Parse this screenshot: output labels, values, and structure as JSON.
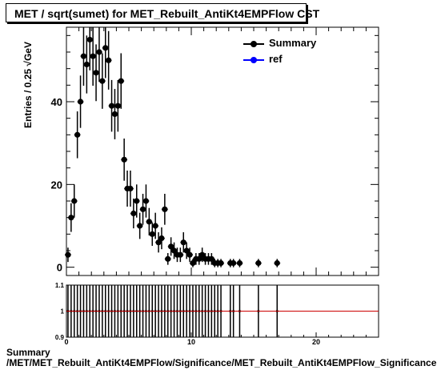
{
  "title": "MET / sqrt(sumet) for MET_Rebuilt_AntiKt4EMPFlow CST",
  "ylabel": "Entries / 0.25 √GeV",
  "footer_line1": "Summary",
  "footer_line2": "/MET/MET_Rebuilt_AntiKt4EMPFlow/Significance/MET_Rebuilt_AntiKt4EMPFlow_Significance",
  "legend": [
    {
      "label": "Summary",
      "color": "#000000"
    },
    {
      "label": "ref",
      "color": "#0000ff"
    }
  ],
  "chart_data": [
    {
      "type": "scatter",
      "xlim": [
        0,
        25
      ],
      "ylim": [
        -2,
        58
      ],
      "yticks": [
        0,
        20,
        40
      ],
      "xticks": [
        0,
        10,
        20
      ],
      "series": [
        {
          "name": "Summary",
          "color": "#000000",
          "x": [
            0.125,
            0.375,
            0.625,
            0.875,
            1.125,
            1.375,
            1.625,
            1.875,
            2.125,
            2.375,
            2.625,
            2.875,
            3.125,
            3.375,
            3.625,
            3.875,
            4.125,
            4.375,
            4.625,
            4.875,
            5.125,
            5.375,
            5.625,
            5.875,
            6.125,
            6.375,
            6.625,
            6.875,
            7.125,
            7.375,
            7.625,
            7.875,
            8.125,
            8.375,
            8.625,
            8.875,
            9.125,
            9.375,
            9.625,
            9.875,
            10.125,
            10.375,
            10.625,
            10.875,
            11.125,
            11.375,
            11.625,
            11.875,
            12.125,
            12.375,
            13.125,
            13.375,
            13.875,
            15.375,
            16.875
          ],
          "y": [
            3,
            12,
            16,
            32,
            40,
            51,
            49,
            55,
            51,
            47,
            52,
            45,
            53,
            50,
            39,
            37,
            39,
            45,
            26,
            19,
            19,
            13,
            16,
            10,
            14,
            16,
            11,
            8,
            10,
            6,
            7,
            14,
            2,
            5,
            4,
            3,
            3,
            6,
            4,
            3,
            1,
            2,
            2,
            3,
            2,
            2,
            2,
            1,
            1,
            1,
            1,
            1,
            1,
            1,
            1
          ]
        },
        {
          "name": "ref",
          "color": "#0000ff",
          "x": [],
          "y": []
        }
      ]
    },
    {
      "type": "line",
      "xlim": [
        0,
        25
      ],
      "ylim": [
        0.9,
        1.1
      ],
      "yticks": [
        0.9,
        1,
        1.1
      ],
      "xticks": [
        0,
        10,
        20
      ],
      "ratio_value": 1,
      "ratio_line_color": "#cc0000"
    }
  ]
}
